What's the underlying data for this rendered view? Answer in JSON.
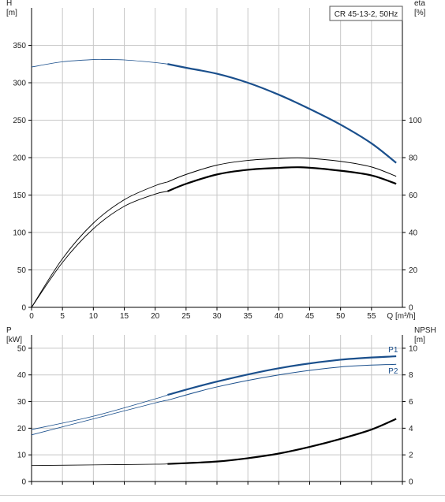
{
  "colors": {
    "grid": "#c8c8c8",
    "axis": "#000000",
    "blue": "#1a4f8c",
    "black": "#000000",
    "text": "#222222"
  },
  "chart_data": [
    {
      "type": "line",
      "panel": "head-efficiency",
      "title": "CR 45-13-2, 50Hz",
      "x_label": "Q [m³/h]",
      "x_ticks": [
        "0",
        "5",
        "10",
        "15",
        "20",
        "25",
        "30",
        "35",
        "40",
        "45",
        "50",
        "55"
      ],
      "xlim": [
        0,
        60
      ],
      "grid": true,
      "left_axis": {
        "label": "H",
        "unit": "[m]",
        "ylim": [
          0,
          400
        ],
        "ticks": [
          "0",
          "50",
          "100",
          "150",
          "200",
          "250",
          "300",
          "350"
        ]
      },
      "right_axis": {
        "label": "eta",
        "unit": "[%]",
        "ylim": [
          0,
          160
        ],
        "ticks": [
          "0",
          "20",
          "40",
          "60",
          "80",
          "100"
        ]
      },
      "series": [
        {
          "axis": "left",
          "color": "blue",
          "x": [
            0,
            5,
            10,
            12,
            15,
            20,
            22,
            25,
            30,
            35,
            40,
            45,
            50,
            55,
            59
          ],
          "y": [
            321,
            328,
            331,
            331,
            330.5,
            327,
            325,
            320,
            312,
            300,
            284,
            265,
            244,
            219,
            193
          ],
          "operating_from": 22
        },
        {
          "axis": "right",
          "color": "black",
          "x": [
            0,
            5,
            10,
            15,
            20,
            22,
            25,
            30,
            35,
            40,
            44,
            50,
            55,
            59
          ],
          "y": [
            0,
            26,
            45,
            57.5,
            65,
            67,
            71,
            76,
            78.5,
            79.5,
            79.8,
            78,
            75,
            70
          ],
          "operating_from": 22,
          "thick": false
        },
        {
          "axis": "right",
          "color": "black",
          "x": [
            0,
            5,
            10,
            15,
            20,
            22,
            25,
            30,
            35,
            40,
            44,
            50,
            55,
            59
          ],
          "y": [
            0,
            24,
            42,
            54,
            60.5,
            62,
            66,
            71,
            73.5,
            74.5,
            74.8,
            73,
            70.5,
            66
          ],
          "operating_from": 22,
          "thick": true
        }
      ]
    },
    {
      "type": "line",
      "panel": "power-npsh",
      "x_ticks": [
        "0",
        "5",
        "10",
        "15",
        "20",
        "25",
        "30",
        "35",
        "40",
        "45",
        "50",
        "55"
      ],
      "xlim": [
        0,
        60
      ],
      "grid": true,
      "left_axis": {
        "label": "P",
        "unit": "[kW]",
        "ylim": [
          0,
          55
        ],
        "ticks": [
          "0",
          "10",
          "20",
          "30",
          "40",
          "50"
        ]
      },
      "right_axis": {
        "label": "NPSH",
        "unit": "[m]",
        "ylim": [
          0,
          11
        ],
        "ticks": [
          "0",
          "2",
          "4",
          "6",
          "8",
          "10"
        ]
      },
      "series": [
        {
          "name": "P1",
          "axis": "left",
          "color": "blue",
          "x": [
            0,
            10,
            20,
            22,
            30,
            40,
            50,
            59
          ],
          "y": [
            19.5,
            24.5,
            31,
            32.5,
            37.5,
            42.5,
            45.7,
            47
          ],
          "operating_from": 22
        },
        {
          "name": "P2",
          "axis": "left",
          "color": "blue",
          "x": [
            0,
            10,
            20,
            22,
            30,
            40,
            50,
            59
          ],
          "y": [
            17.5,
            23.5,
            29.5,
            30.5,
            35.5,
            40,
            43,
            44
          ],
          "operating_from": 22,
          "thin": true
        },
        {
          "axis": "right",
          "color": "black",
          "x": [
            0,
            10,
            20,
            22,
            25,
            30,
            35,
            40,
            45,
            50,
            55,
            59
          ],
          "y": [
            1.2,
            1.25,
            1.3,
            1.32,
            1.38,
            1.5,
            1.75,
            2.1,
            2.6,
            3.2,
            3.9,
            4.7
          ],
          "operating_from": 22
        }
      ]
    }
  ]
}
